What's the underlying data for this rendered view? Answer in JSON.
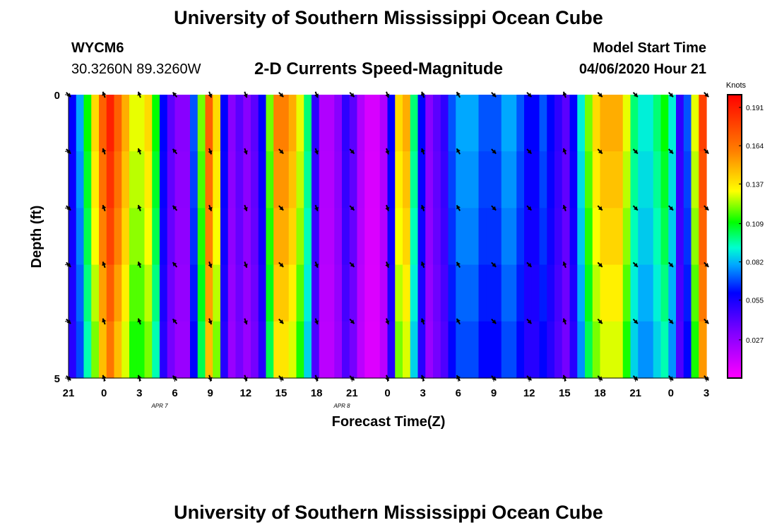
{
  "header": {
    "title": "University of Southern Mississippi Ocean Cube",
    "station_id": "WYCM6",
    "coordinates": "30.3260N 89.3260W",
    "chart_title": "2-D Currents Speed-Magnitude",
    "model_start_label": "Model Start Time",
    "model_start_value": "04/06/2020 Hour 21"
  },
  "footer": {
    "title": "University of Southern Mississippi Ocean Cube"
  },
  "chart_data": {
    "type": "heatmap",
    "title": "2-D Currents Speed-Magnitude",
    "xlabel": "Forecast Time(Z)",
    "ylabel": "Depth (ft)",
    "x_tick_labels": [
      "21",
      "0",
      "3",
      "6",
      "9",
      "12",
      "15",
      "18",
      "21",
      "0",
      "3",
      "6",
      "9",
      "12",
      "15",
      "18",
      "21",
      "0",
      "3"
    ],
    "date_labels": [
      {
        "text": "APR 7",
        "at_hour": 12
      },
      {
        "text": "APR 8",
        "at_hour": 36
      }
    ],
    "y_tick_labels": [
      "0",
      "5"
    ],
    "ylim": [
      0,
      5
    ],
    "xlim_hours": [
      0,
      54
    ],
    "depth_rows": 5,
    "colorbar": {
      "unit": "Knots",
      "range": [
        0.0,
        0.2
      ],
      "tick_labels": [
        "0.191",
        "0.164",
        "0.137",
        "0.109",
        "0.082",
        "0.055",
        "0.027"
      ],
      "tick_values": [
        0.191,
        0.164,
        0.137,
        0.109,
        0.082,
        0.055,
        0.027
      ]
    },
    "hour_values_knots": [
      0.06,
      0.08,
      0.11,
      0.14,
      0.17,
      0.19,
      0.17,
      0.15,
      0.13,
      0.13,
      0.14,
      0.11,
      0.06,
      0.04,
      0.03,
      0.03,
      0.07,
      0.12,
      0.17,
      0.14,
      0.06,
      0.03,
      0.04,
      0.03,
      0.04,
      0.06,
      0.12,
      0.16,
      0.16,
      0.15,
      0.13,
      0.1,
      0.05,
      0.02,
      0.02,
      0.03,
      0.05,
      0.04,
      0.02,
      0.01,
      0.01,
      0.02,
      0.06,
      0.14,
      0.15,
      0.1,
      0.06,
      0.03,
      0.04,
      0.05,
      0.07,
      0.08,
      0.08,
      0.08,
      0.07,
      0.07,
      0.07,
      0.08,
      0.08,
      0.07,
      0.06,
      0.06,
      0.07,
      0.06,
      0.05,
      0.04,
      0.06,
      0.09,
      0.12,
      0.14,
      0.15,
      0.15,
      0.15,
      0.13,
      0.1,
      0.09,
      0.09,
      0.1,
      0.11,
      0.09,
      0.05,
      0.07,
      0.13,
      0.18
    ],
    "depth_factors": [
      1.0,
      0.97,
      0.94,
      0.9,
      0.86
    ],
    "arrow_angles_deg": [
      [
        135,
        -20,
        -20,
        -40,
        160,
        160,
        135,
        160,
        135,
        160,
        -20,
        -30,
        135,
        135,
        -20,
        135,
        135,
        135,
        135
      ],
      [
        135,
        -20,
        -20,
        -40,
        160,
        160,
        135,
        160,
        135,
        160,
        -20,
        -30,
        135,
        135,
        -20,
        135,
        135,
        135,
        135
      ],
      [
        135,
        -20,
        -20,
        -40,
        160,
        160,
        135,
        160,
        135,
        160,
        -20,
        -30,
        135,
        135,
        -20,
        135,
        135,
        135,
        135
      ],
      [
        135,
        -20,
        -20,
        -40,
        160,
        160,
        135,
        160,
        135,
        160,
        -20,
        -30,
        135,
        135,
        -20,
        135,
        135,
        135,
        135
      ],
      [
        135,
        -20,
        -20,
        -40,
        160,
        160,
        135,
        160,
        135,
        160,
        -20,
        -30,
        135,
        135,
        -20,
        135,
        135,
        135,
        135
      ],
      [
        135,
        -20,
        -20,
        -40,
        160,
        160,
        135,
        160,
        135,
        160,
        -20,
        -30,
        135,
        135,
        -20,
        135,
        135,
        135,
        135
      ]
    ]
  }
}
